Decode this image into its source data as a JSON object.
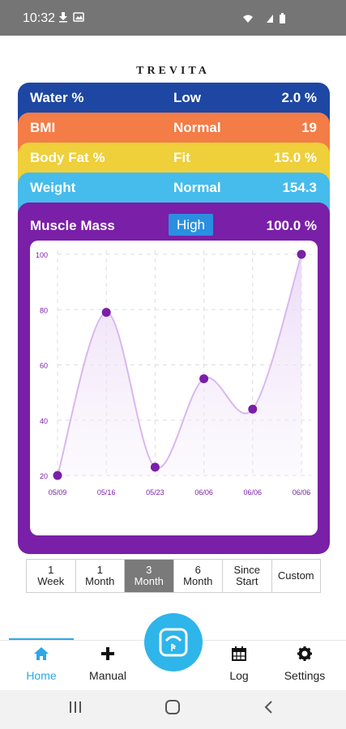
{
  "status_bar": {
    "time": "10:32"
  },
  "logo": "TREVITA",
  "metrics": [
    {
      "label": "Water %",
      "status": "Low",
      "value": "2.0 %",
      "color": "#1e47a3"
    },
    {
      "label": "BMI",
      "status": "Normal",
      "value": "19",
      "color": "#f37c47"
    },
    {
      "label": "Body Fat %",
      "status": "Fit",
      "value": "15.0 %",
      "color": "#efcf3a"
    },
    {
      "label": "Weight",
      "status": "Normal",
      "value": "154.3",
      "color": "#45bcec"
    }
  ],
  "muscle": {
    "label": "Muscle Mass",
    "status": "High",
    "value": "100.0 %",
    "color": "#7a1fa8"
  },
  "chart_data": {
    "type": "line",
    "x": [
      "05/09",
      "05/16",
      "05/23",
      "06/06",
      "06/06",
      "06/06"
    ],
    "values": [
      20,
      79,
      23,
      55,
      44,
      100
    ],
    "yticks": [
      20,
      40,
      60,
      80,
      100
    ],
    "ylim": [
      20,
      100
    ],
    "grid": true,
    "line_color": "#d9b8ee",
    "point_color": "#7a1fa8"
  },
  "range": {
    "options": [
      {
        "line1": "1",
        "line2": "Week"
      },
      {
        "line1": "1",
        "line2": "Month"
      },
      {
        "line1": "3",
        "line2": "Month"
      },
      {
        "line1": "6",
        "line2": "Month"
      },
      {
        "line1": "Since",
        "line2": "Start"
      },
      {
        "line1": "Custom",
        "line2": ""
      }
    ],
    "active_index": 2
  },
  "nav": {
    "home": "Home",
    "manual": "Manual",
    "log": "Log",
    "settings": "Settings"
  }
}
